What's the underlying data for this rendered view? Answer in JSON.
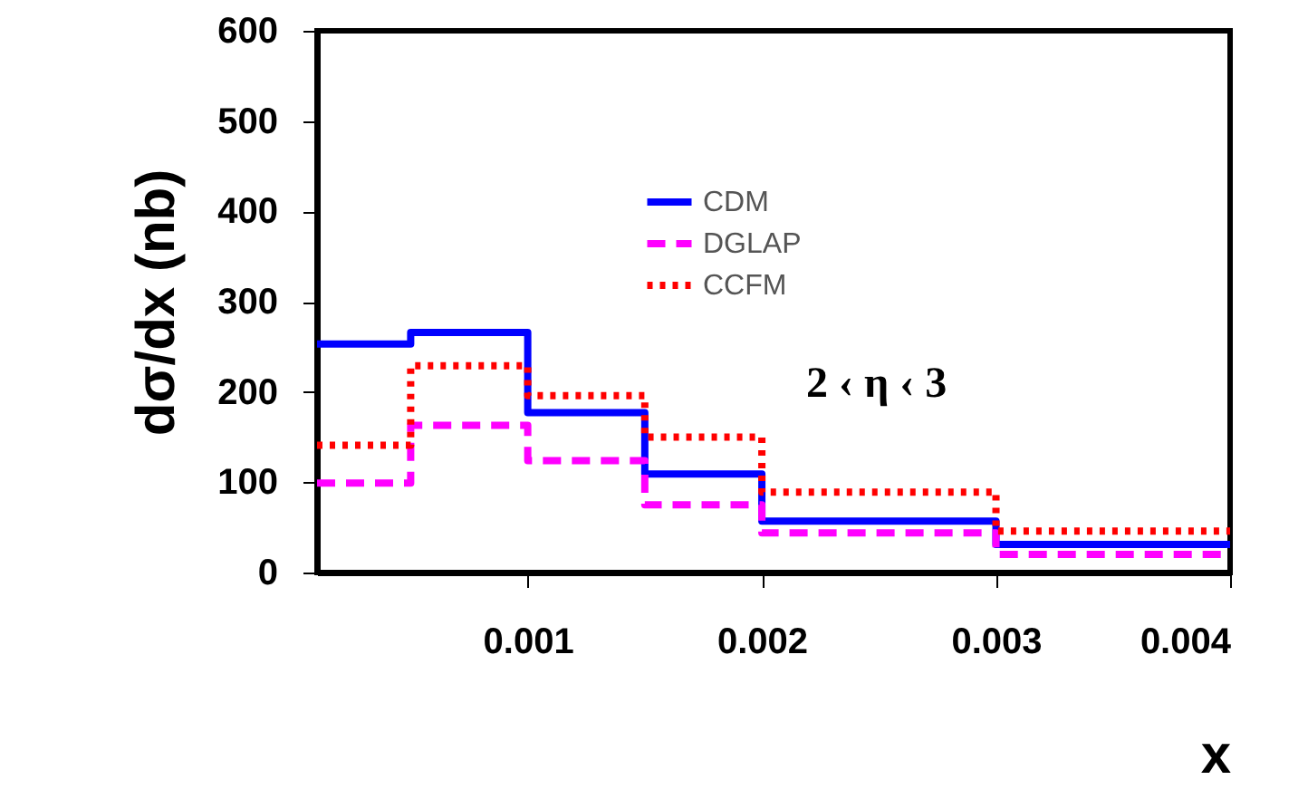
{
  "chart_data": {
    "type": "histogram",
    "xlabel": "x",
    "ylabel": "dσ/dx (nb)",
    "bins": [
      0.0001,
      0.0005,
      0.001,
      0.0015,
      0.002,
      0.003,
      0.004
    ],
    "series": [
      {
        "name": "CDM",
        "color": "#0000ff",
        "line_style": "solid",
        "values": [
          253,
          266,
          177,
          109,
          57,
          31
        ]
      },
      {
        "name": "DGLAP",
        "color": "#ff00ff",
        "line_style": "dashed",
        "values": [
          99,
          163,
          124,
          75,
          44,
          20
        ]
      },
      {
        "name": "CCFM",
        "color": "#ff0000",
        "line_style": "dotted",
        "values": [
          141,
          229,
          196,
          150,
          89,
          46
        ]
      }
    ],
    "xlim": [
      0.0001,
      0.004
    ],
    "xticks": [
      0.001,
      0.002,
      0.003,
      0.004
    ],
    "ylim": [
      0,
      600
    ],
    "yticks": [
      0,
      100,
      200,
      300,
      400,
      500,
      600
    ],
    "annotations": [
      "2 ‹ η ‹ 3"
    ],
    "legend": "top",
    "grid": false
  }
}
